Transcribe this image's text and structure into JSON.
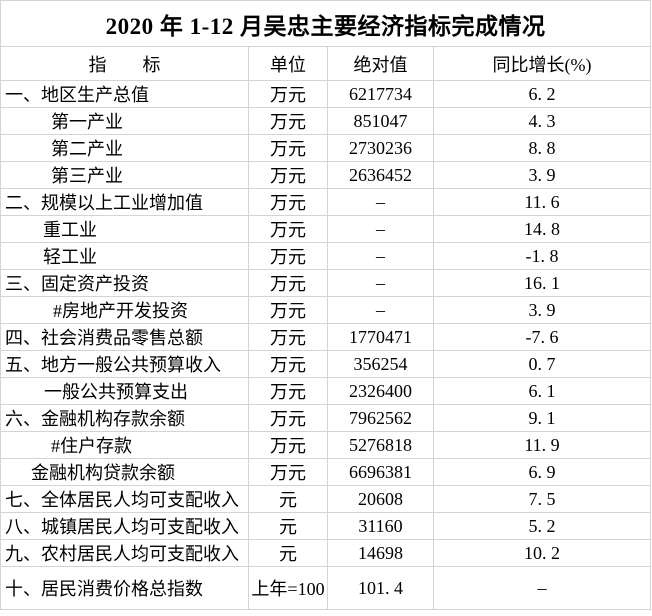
{
  "chart_data": {
    "type": "table",
    "title": "2020 年 1-12 月吴忠主要经济指标完成情况",
    "columns": [
      "指　　标",
      "单位",
      "绝对值",
      "同比增长(%)"
    ],
    "rows": [
      {
        "indicator": "一、地区生产总值",
        "indent": 4,
        "unit": "万元",
        "value": "6217734",
        "growth": "6. 2"
      },
      {
        "indicator": "第一产业",
        "indent": 50,
        "unit": "万元",
        "value": "851047",
        "growth": "4. 3"
      },
      {
        "indicator": "第二产业",
        "indent": 50,
        "unit": "万元",
        "value": "2730236",
        "growth": "8. 8"
      },
      {
        "indicator": "第三产业",
        "indent": 50,
        "unit": "万元",
        "value": "2636452",
        "growth": "3. 9"
      },
      {
        "indicator": "二、规模以上工业增加值",
        "indent": 4,
        "unit": "万元",
        "value": "–",
        "growth": "11. 6"
      },
      {
        "indicator": "重工业",
        "indent": 42,
        "unit": "万元",
        "value": "–",
        "growth": "14. 8"
      },
      {
        "indicator": "轻工业",
        "indent": 42,
        "unit": "万元",
        "value": "–",
        "growth": "-1. 8"
      },
      {
        "indicator": "三、固定资产投资",
        "indent": 4,
        "unit": "万元",
        "value": "–",
        "growth": "16. 1"
      },
      {
        "indicator": "#房地产开发投资",
        "indent": 52,
        "unit": "万元",
        "value": "–",
        "growth": "3. 9"
      },
      {
        "indicator": "四、社会消费品零售总额",
        "indent": 4,
        "unit": "万元",
        "value": "1770471",
        "growth": "-7. 6"
      },
      {
        "indicator": "五、地方一般公共预算收入",
        "indent": 4,
        "unit": "万元",
        "value": "356254",
        "growth": "0. 7"
      },
      {
        "indicator": "一般公共预算支出",
        "indent": 43,
        "unit": "万元",
        "value": "2326400",
        "growth": "6. 1"
      },
      {
        "indicator": "六、金融机构存款余额",
        "indent": 4,
        "unit": "万元",
        "value": "7962562",
        "growth": "9. 1"
      },
      {
        "indicator": "#住户存款",
        "indent": 50,
        "unit": "万元",
        "value": "5276818",
        "growth": "11. 9"
      },
      {
        "indicator": "金融机构贷款余额",
        "indent": 30,
        "unit": "万元",
        "value": "6696381",
        "growth": "6. 9"
      },
      {
        "indicator": "七、全体居民人均可支配收入",
        "indent": 4,
        "unit": "元",
        "value": "20608",
        "growth": "7. 5"
      },
      {
        "indicator": "八、城镇居民人均可支配收入",
        "indent": 4,
        "unit": "元",
        "value": "31160",
        "growth": "5. 2"
      },
      {
        "indicator": "九、农村居民人均可支配收入",
        "indent": 4,
        "unit": "元",
        "value": "14698",
        "growth": "10. 2"
      },
      {
        "indicator": "十、居民消费价格总指数",
        "indent": 4,
        "unit": "上年=100",
        "value": "101. 4",
        "growth": "–",
        "tall": true
      }
    ],
    "layout": {
      "grid": "on",
      "grid_color": "#d4d4d4",
      "text_color": "#000000",
      "background_color": "#ffffff"
    }
  }
}
